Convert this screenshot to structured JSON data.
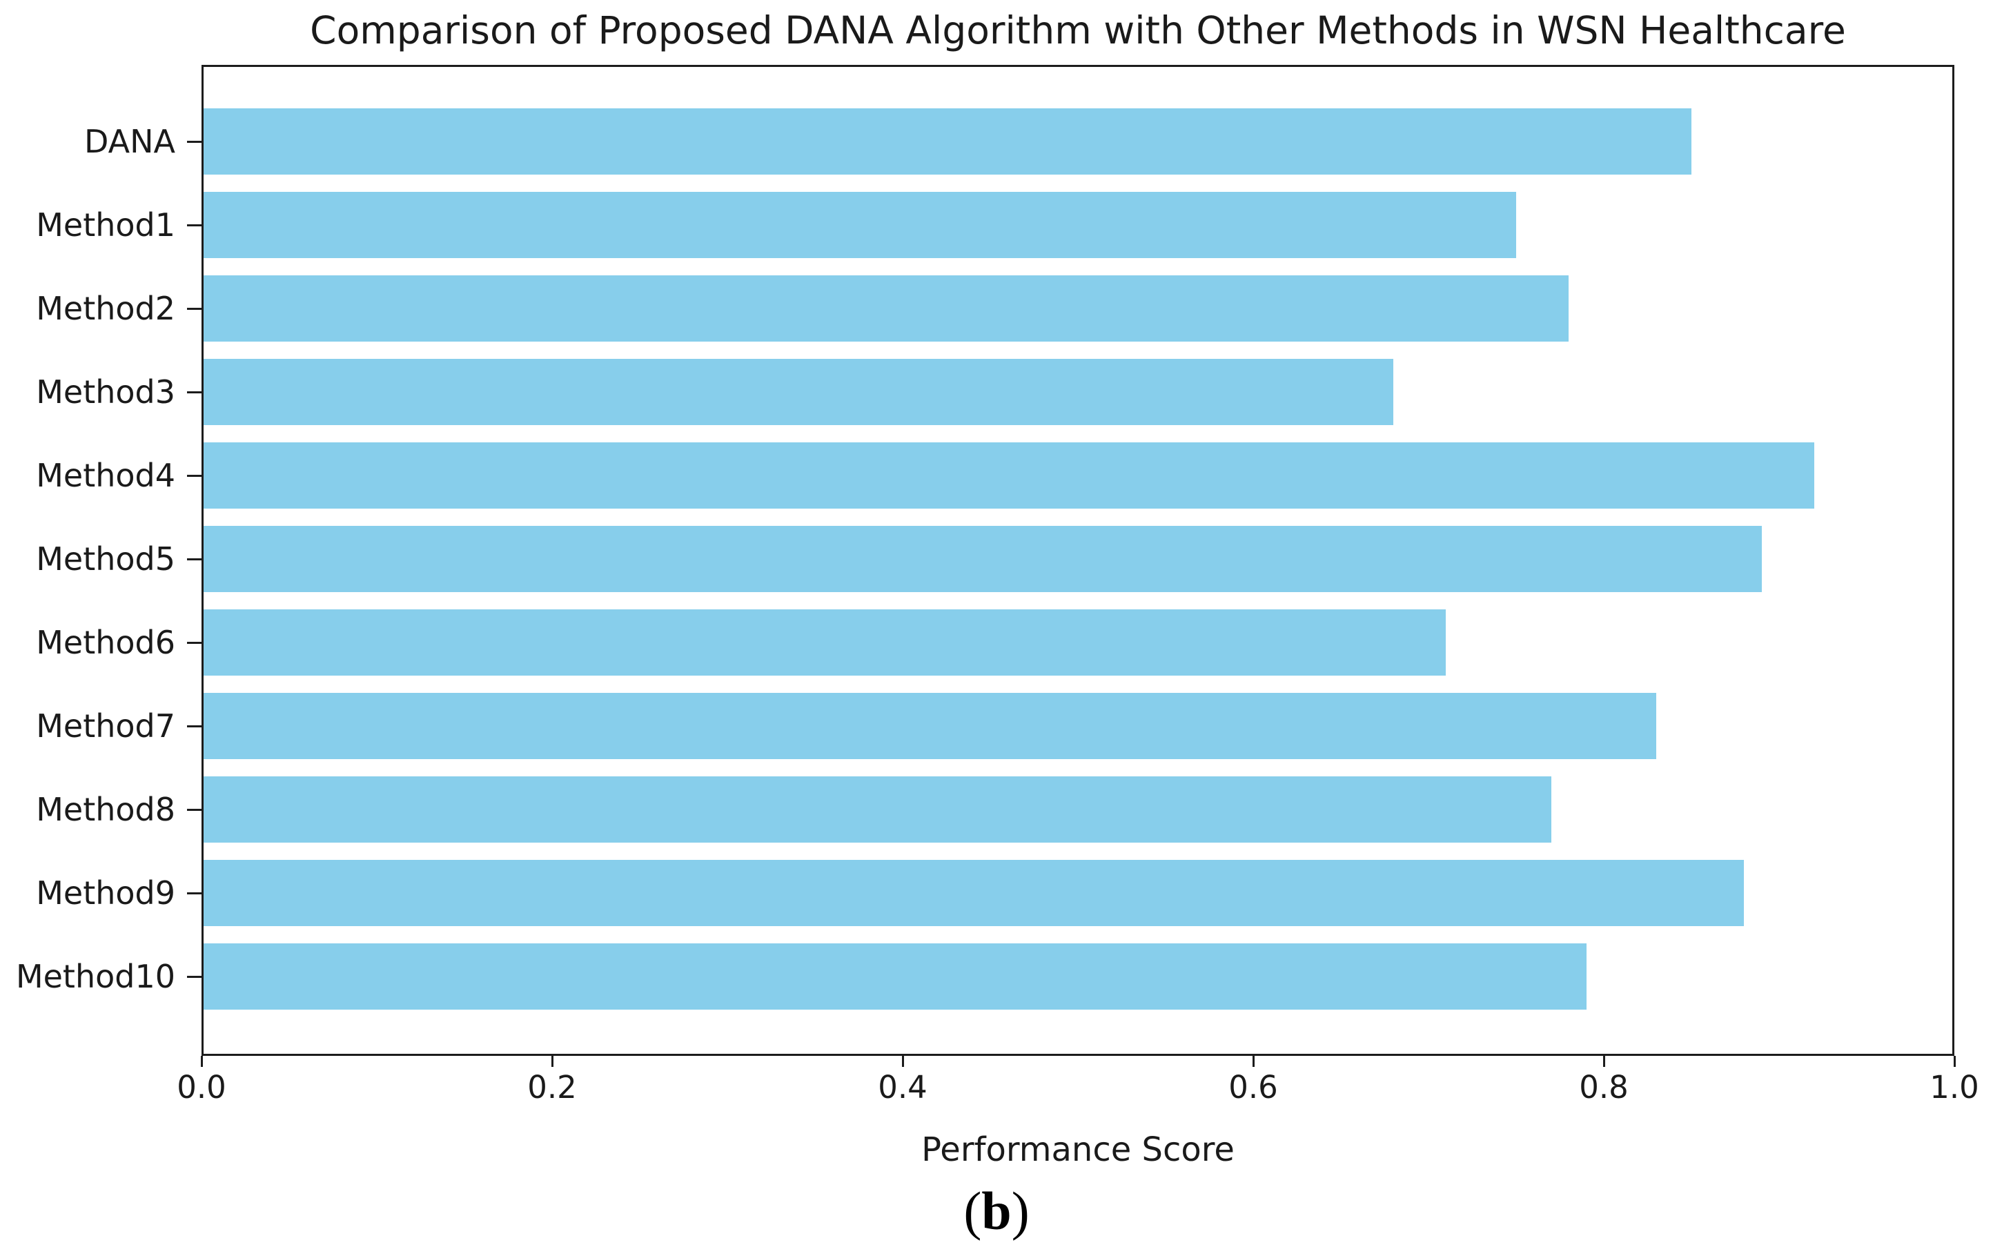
{
  "chart_data": {
    "type": "bar",
    "orientation": "horizontal",
    "title": "Comparison of Proposed DANA Algorithm with Other Methods in WSN Healthcare",
    "categories": [
      "DANA",
      "Method1",
      "Method2",
      "Method3",
      "Method4",
      "Method5",
      "Method6",
      "Method7",
      "Method8",
      "Method9",
      "Method10"
    ],
    "values": [
      0.85,
      0.75,
      0.78,
      0.68,
      0.92,
      0.89,
      0.71,
      0.83,
      0.77,
      0.88,
      0.79
    ],
    "xlabel": "Performance Score",
    "ylabel": "",
    "xlim": [
      0.0,
      1.0
    ],
    "xticks": [
      0.0,
      0.2,
      0.4,
      0.6,
      0.8,
      1.0
    ],
    "xtick_labels": [
      "0.0",
      "0.2",
      "0.4",
      "0.6",
      "0.8",
      "1.0"
    ],
    "grid": false,
    "legend": null,
    "bar_color": "#87CEEB"
  },
  "caption": {
    "open": "(",
    "letter": "b",
    "close": ")"
  }
}
